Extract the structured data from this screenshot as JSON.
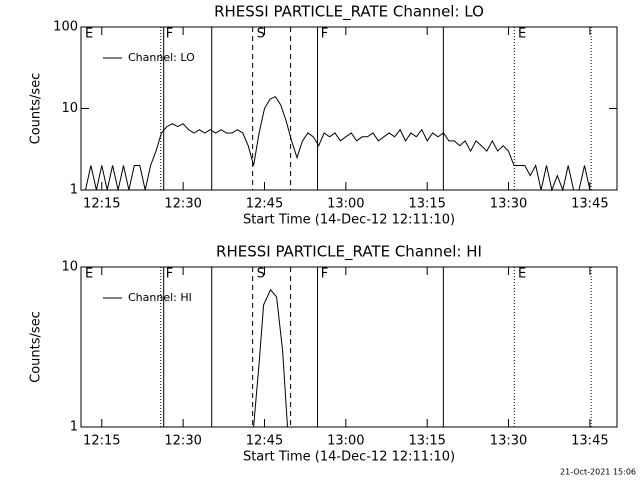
{
  "chart_data": [
    {
      "type": "line",
      "title": "RHESSI PARTICLE_RATE Channel: LO",
      "x_label": "Start Time (14-Dec-12 12:11:10)",
      "y_label": "Counts/sec",
      "log_y": true,
      "ylim": [
        1,
        100
      ],
      "yticks": [
        1,
        10,
        100
      ],
      "xlim": [
        "12:11:10",
        "13:50:00"
      ],
      "xticks": [
        "12:15",
        "12:30",
        "12:45",
        "13:00",
        "13:15",
        "13:30",
        "13:45"
      ],
      "legend": "top-left",
      "x": [
        "12:12",
        "12:13",
        "12:14",
        "12:15",
        "12:16",
        "12:17",
        "12:18",
        "12:19",
        "12:20",
        "12:21",
        "12:22",
        "12:23",
        "12:24",
        "12:25",
        "12:26",
        "12:27",
        "12:28",
        "12:29",
        "12:30",
        "12:31",
        "12:32",
        "12:33",
        "12:34",
        "12:35",
        "12:36",
        "12:37",
        "12:38",
        "12:39",
        "12:40",
        "12:41",
        "12:42",
        "12:43",
        "12:44",
        "12:45",
        "12:46",
        "12:47",
        "12:48",
        "12:49",
        "12:50",
        "12:51",
        "12:52",
        "12:53",
        "12:54",
        "12:55",
        "12:56",
        "12:57",
        "12:58",
        "12:59",
        "13:00",
        "13:01",
        "13:02",
        "13:03",
        "13:04",
        "13:05",
        "13:06",
        "13:07",
        "13:08",
        "13:09",
        "13:10",
        "13:11",
        "13:12",
        "13:13",
        "13:14",
        "13:15",
        "13:16",
        "13:17",
        "13:18",
        "13:19",
        "13:20",
        "13:21",
        "13:22",
        "13:23",
        "13:24",
        "13:25",
        "13:26",
        "13:27",
        "13:28",
        "13:29",
        "13:30",
        "13:31",
        "13:32",
        "13:33",
        "13:34",
        "13:35",
        "13:36",
        "13:37",
        "13:38",
        "13:39",
        "13:40",
        "13:41",
        "13:42",
        "13:43",
        "13:44",
        "13:45",
        "13:46"
      ],
      "series": [
        {
          "name": "Channel: LO",
          "color": "#000000",
          "values": [
            1,
            2,
            1,
            2,
            1,
            2,
            1,
            2,
            1,
            2,
            2,
            1,
            2,
            3,
            5,
            6,
            6.5,
            6,
            6.5,
            5.5,
            5,
            5.5,
            5,
            5.5,
            5,
            5.5,
            5,
            5,
            5.5,
            5,
            3.5,
            2,
            5,
            10,
            13,
            14,
            11,
            7,
            4,
            2.5,
            4,
            5,
            4.5,
            3.5,
            5,
            4.5,
            5,
            4,
            4.5,
            5,
            4,
            4.5,
            4.5,
            5,
            4,
            4.5,
            5,
            4.5,
            5.5,
            4,
            5,
            4.5,
            5.5,
            4,
            5,
            4.5,
            5,
            4,
            4,
            3.5,
            4,
            3,
            4,
            3.5,
            3,
            4,
            3,
            3.5,
            3,
            2,
            2,
            2,
            1.5,
            2,
            1,
            2,
            1,
            1.5,
            1,
            2,
            1,
            1,
            2,
            1,
            1
          ]
        }
      ],
      "events": [
        {
          "x": "12:25:52",
          "style": "dotted"
        },
        {
          "x": "12:26:25",
          "style": "solid"
        },
        {
          "x": "12:35:16",
          "style": "solid"
        },
        {
          "x": "12:42:49",
          "style": "dashed"
        },
        {
          "x": "12:49:49",
          "style": "dashed"
        },
        {
          "x": "12:54:47",
          "style": "solid"
        },
        {
          "x": "13:17:59",
          "style": "solid"
        },
        {
          "x": "13:31:04",
          "style": "dotted"
        },
        {
          "x": "13:45:14",
          "style": "dotted"
        }
      ],
      "flags": [
        {
          "label": "E",
          "x": "12:11:54"
        },
        {
          "label": "F",
          "x": "12:26:47"
        },
        {
          "label": "S",
          "x": "12:43:33"
        },
        {
          "label": "F",
          "x": "12:55:22"
        },
        {
          "label": "E",
          "x": "13:31:45"
        }
      ]
    },
    {
      "type": "line",
      "title": "RHESSI PARTICLE_RATE Channel: HI",
      "x_label": "Start Time (14-Dec-12 12:11:10)",
      "y_label": "Counts/sec",
      "log_y": true,
      "ylim": [
        1,
        10
      ],
      "yticks": [
        1,
        10
      ],
      "xlim": [
        "12:11:10",
        "13:50:00"
      ],
      "xticks": [
        "12:15",
        "12:30",
        "12:45",
        "13:00",
        "13:15",
        "13:30",
        "13:45"
      ],
      "legend": "top-left",
      "x": [
        "12:43:00",
        "12:44:00",
        "12:44:50",
        "12:46:07",
        "12:47:14",
        "12:48:20",
        "12:49:15"
      ],
      "series": [
        {
          "name": "Channel: HI",
          "color": "#000000",
          "values": [
            1,
            2.5,
            5.8,
            7.2,
            6.5,
            3,
            1
          ]
        }
      ],
      "events": [
        {
          "x": "12:25:52",
          "style": "dotted"
        },
        {
          "x": "12:26:25",
          "style": "solid"
        },
        {
          "x": "12:35:16",
          "style": "solid"
        },
        {
          "x": "12:42:49",
          "style": "dashed"
        },
        {
          "x": "12:49:49",
          "style": "dashed"
        },
        {
          "x": "12:54:47",
          "style": "solid"
        },
        {
          "x": "13:17:59",
          "style": "solid"
        },
        {
          "x": "13:31:04",
          "style": "dotted"
        },
        {
          "x": "13:45:14",
          "style": "dotted"
        }
      ],
      "flags": [
        {
          "label": "E",
          "x": "12:11:54"
        },
        {
          "label": "F",
          "x": "12:26:47"
        },
        {
          "label": "S",
          "x": "12:43:33"
        },
        {
          "label": "F",
          "x": "12:55:22"
        },
        {
          "label": "E",
          "x": "13:31:45"
        }
      ]
    }
  ],
  "footer": "21-Oct-2021 15:06"
}
